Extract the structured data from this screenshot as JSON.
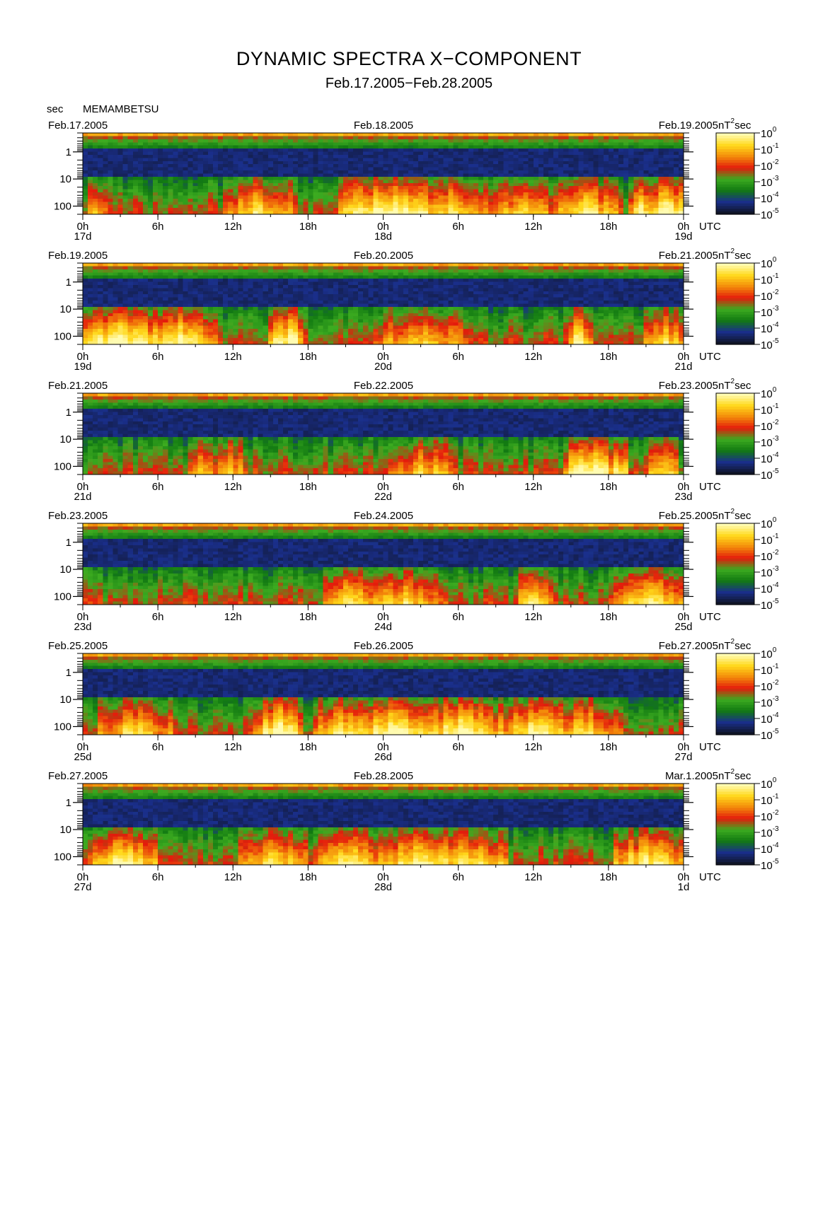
{
  "title": "DYNAMIC SPECTRA X−COMPONENT",
  "subtitle": "Feb.17.2005−Feb.28.2005",
  "station": "MEMAMBETSU",
  "y_unit": "sec",
  "colorbar_unit": "nT²sec",
  "colorbar_unit_base": "nT",
  "colorbar_unit_sup": "2",
  "colorbar_unit_tail": "sec",
  "time_unit": "UTC",
  "colors": {
    "background": "#000000",
    "scale": [
      "#101528",
      "#1a2f8c",
      "#127a12",
      "#3cab20",
      "#e41a0c",
      "#f38a0a",
      "#ffd81a",
      "#fffbb2"
    ]
  },
  "chart_data": [
    {
      "type": "heatmap",
      "panel": "Feb.17.2005−Feb.18.2005",
      "date_left": "Feb.17.2005",
      "date_mid": "Feb.18.2005",
      "date_right": "Feb.19.2005",
      "x_ticks": [
        "0h",
        "6h",
        "12h",
        "18h",
        "0h",
        "6h",
        "12h",
        "18h",
        "0h"
      ],
      "day_labels": [
        "17d",
        "18d",
        "19d"
      ],
      "y_ticks": [
        "1",
        "10",
        "100"
      ],
      "ylabel": "sec",
      "ylim": [
        0.2,
        200
      ],
      "yscale": "log",
      "colorbar": {
        "ticks": [
          "0",
          "-1",
          "-2",
          "-3",
          "-4",
          "-5"
        ],
        "base": "10"
      },
      "bursts": [
        [
          0.9,
          0.8,
          0.55
        ],
        [
          14,
          3.0,
          0.6
        ],
        [
          24.5,
          4.5,
          0.85
        ],
        [
          29.5,
          3.0,
          0.6
        ],
        [
          35,
          2.5,
          0.55
        ],
        [
          40,
          3.0,
          0.65
        ],
        [
          44.3,
          0.7,
          0.95
        ],
        [
          46.5,
          2.5,
          0.8
        ]
      ]
    },
    {
      "type": "heatmap",
      "panel": "Feb.19.2005−Feb.20.2005",
      "date_left": "Feb.19.2005",
      "date_mid": "Feb.20.2005",
      "date_right": "Feb.21.2005",
      "x_ticks": [
        "0h",
        "6h",
        "12h",
        "18h",
        "0h",
        "6h",
        "12h",
        "18h",
        "0h"
      ],
      "day_labels": [
        "19d",
        "20d",
        "21d"
      ],
      "y_ticks": [
        "1",
        "10",
        "100"
      ],
      "ylabel": "sec",
      "ylim": [
        0.2,
        200
      ],
      "yscale": "log",
      "colorbar": {
        "ticks": [
          "0",
          "-1",
          "-2",
          "-3",
          "-4",
          "-5"
        ],
        "base": "10"
      },
      "bursts": [
        [
          2.5,
          5.0,
          0.8
        ],
        [
          7.5,
          3.0,
          0.75
        ],
        [
          15.5,
          1.0,
          0.85
        ],
        [
          16.5,
          1.0,
          0.8
        ],
        [
          27,
          4.0,
          0.55
        ],
        [
          39.5,
          1.0,
          0.85
        ],
        [
          46.5,
          2.0,
          0.6
        ]
      ]
    },
    {
      "type": "heatmap",
      "panel": "Feb.21.2005−Feb.22.2005",
      "date_left": "Feb.21.2005",
      "date_mid": "Feb.22.2005",
      "date_right": "Feb.23.2005",
      "x_ticks": [
        "0h",
        "6h",
        "12h",
        "18h",
        "0h",
        "6h",
        "12h",
        "18h",
        "0h"
      ],
      "day_labels": [
        "21d",
        "22d",
        "23d"
      ],
      "y_ticks": [
        "1",
        "10",
        "100"
      ],
      "ylabel": "sec",
      "ylim": [
        0.2,
        200
      ],
      "yscale": "log",
      "colorbar": {
        "ticks": [
          "0",
          "-1",
          "-2",
          "-3",
          "-4",
          "-5"
        ],
        "base": "10"
      },
      "bursts": [
        [
          9.5,
          1.5,
          0.5
        ],
        [
          11.5,
          1.5,
          0.5
        ],
        [
          27,
          3.0,
          0.5
        ],
        [
          39.5,
          1.2,
          0.95
        ],
        [
          41,
          1.2,
          0.95
        ],
        [
          42.5,
          1.0,
          0.7
        ],
        [
          46,
          1.5,
          0.55
        ]
      ]
    },
    {
      "type": "heatmap",
      "panel": "Feb.23.2005−Feb.24.2005",
      "date_left": "Feb.23.2005",
      "date_mid": "Feb.24.2005",
      "date_right": "Feb.25.2005",
      "x_ticks": [
        "0h",
        "6h",
        "12h",
        "18h",
        "0h",
        "6h",
        "12h",
        "18h",
        "0h"
      ],
      "day_labels": [
        "23d",
        "24d",
        "25d"
      ],
      "y_ticks": [
        "1",
        "10",
        "100"
      ],
      "ylabel": "sec",
      "ylim": [
        0.2,
        200
      ],
      "yscale": "log",
      "colorbar": {
        "ticks": [
          "0",
          "-1",
          "-2",
          "-3",
          "-4",
          "-5"
        ],
        "base": "10"
      },
      "bursts": [
        [
          21,
          2.0,
          0.65
        ],
        [
          25,
          4.0,
          0.55
        ],
        [
          36,
          1.5,
          0.7
        ],
        [
          45,
          3.0,
          0.7
        ]
      ]
    },
    {
      "type": "heatmap",
      "panel": "Feb.25.2005−Feb.26.2005",
      "date_left": "Feb.25.2005",
      "date_mid": "Feb.26.2005",
      "date_right": "Feb.27.2005",
      "x_ticks": [
        "0h",
        "6h",
        "12h",
        "18h",
        "0h",
        "6h",
        "12h",
        "18h",
        "0h"
      ],
      "day_labels": [
        "25d",
        "26d",
        "27d"
      ],
      "y_ticks": [
        "1",
        "10",
        "100"
      ],
      "ylabel": "sec",
      "ylim": [
        0.2,
        200
      ],
      "yscale": "log",
      "colorbar": {
        "ticks": [
          "0",
          "-1",
          "-2",
          "-3",
          "-4",
          "-5"
        ],
        "base": "10"
      },
      "bursts": [
        [
          4,
          3.0,
          0.6
        ],
        [
          15.5,
          2.0,
          0.85
        ],
        [
          21,
          3.0,
          0.7
        ],
        [
          25,
          4.0,
          0.8
        ],
        [
          30,
          4.0,
          0.75
        ],
        [
          36,
          3.0,
          0.7
        ],
        [
          40,
          3.0,
          0.6
        ]
      ]
    },
    {
      "type": "heatmap",
      "panel": "Feb.27.2005−Feb.28.2005",
      "date_left": "Feb.27.2005",
      "date_mid": "Feb.28.2005",
      "date_right": "Mar.1.2005",
      "x_ticks": [
        "0h",
        "6h",
        "12h",
        "18h",
        "0h",
        "6h",
        "12h",
        "18h",
        "0h"
      ],
      "day_labels": [
        "27d",
        "28d",
        "1d"
      ],
      "y_ticks": [
        "1",
        "10",
        "100"
      ],
      "ylabel": "sec",
      "ylim": [
        0.2,
        200
      ],
      "yscale": "log",
      "colorbar": {
        "ticks": [
          "0",
          "-1",
          "-2",
          "-3",
          "-4",
          "-5"
        ],
        "base": "10"
      },
      "bursts": [
        [
          3,
          3.0,
          0.8
        ],
        [
          15,
          3.0,
          0.6
        ],
        [
          21,
          3.0,
          0.7
        ],
        [
          27,
          4.0,
          0.7
        ],
        [
          31,
          3.0,
          0.65
        ],
        [
          45,
          3.0,
          0.7
        ]
      ]
    }
  ]
}
